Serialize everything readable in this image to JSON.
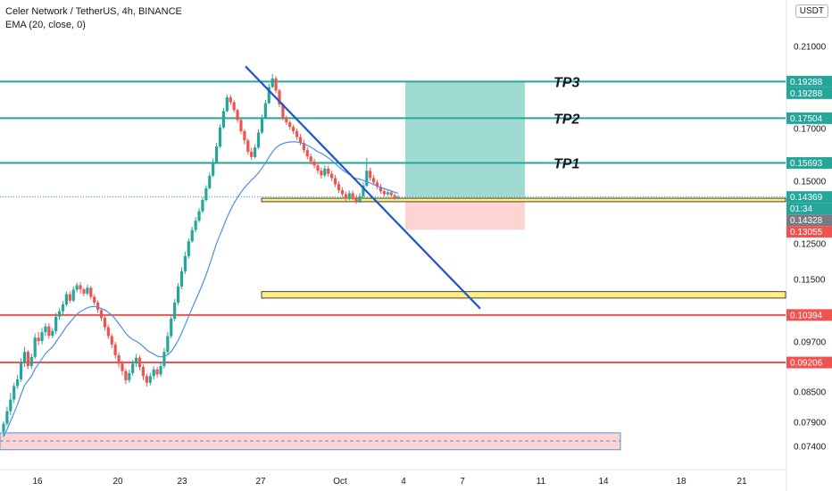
{
  "header": {
    "title": "Celer Network / TetherUS, 4h, BINANCE",
    "indicator": "EMA (20, close, 0)",
    "currency_button": "USDT"
  },
  "colors": {
    "teal": "#26a69a",
    "red": "#ef5350",
    "blue": "#1e56c9",
    "yellow": "#ffef82",
    "teal_zone": "#9fdbd1",
    "red_zone": "#fcd5d3"
  },
  "chart_data": {
    "type": "candlestick",
    "symbol": "Celer Network / TetherUS",
    "timeframe": "4h",
    "exchange": "BINANCE",
    "indicator": "EMA (20, close, 0)",
    "x_ticks": [
      "16",
      "20",
      "23",
      "27",
      "Oct",
      "4",
      "7",
      "11",
      "14",
      "18",
      "21"
    ],
    "y_ticks": [
      "0.21000",
      "0.17000",
      "0.15000",
      "0.12500",
      "0.11500",
      "0.09700",
      "0.08500",
      "0.07900",
      "0.07400"
    ],
    "horizontal_levels": [
      {
        "label": "TP3",
        "value": 0.19288,
        "color": "#26a69a"
      },
      {
        "label": "TP2",
        "value": 0.17504,
        "color": "#26a69a"
      },
      {
        "label": "TP1",
        "value": 0.15693,
        "color": "#26a69a"
      },
      {
        "label": "",
        "value": 0.10394,
        "color": "#ef5350"
      },
      {
        "label": "",
        "value": 0.09206,
        "color": "#ef5350"
      }
    ],
    "price_badges": [
      {
        "text": "0.19288",
        "value": 0.19288,
        "color": "#26a69a"
      },
      {
        "text": "0.19288",
        "value": 0.19288,
        "color": "#26a69a"
      },
      {
        "text": "0.17504",
        "value": 0.17504,
        "color": "#26a69a"
      },
      {
        "text": "0.15693",
        "value": 0.15693,
        "color": "#26a69a"
      },
      {
        "text": "0.14369",
        "value": 0.14369,
        "color": "#26a69a"
      },
      {
        "text": "01:34",
        "value": 0.1423,
        "color": "#26a69a"
      },
      {
        "text": "0.14328",
        "value": 0.14328,
        "color": "#787b86"
      },
      {
        "text": "0.13055",
        "value": 0.13055,
        "color": "#ef5350"
      },
      {
        "text": "0.10394",
        "value": 0.10394,
        "color": "#ef5350"
      },
      {
        "text": "0.09206",
        "value": 0.09206,
        "color": "#ef5350"
      }
    ],
    "last_price": 0.14369,
    "countdown": "01:34",
    "position": {
      "entry": 0.14369,
      "target": 0.19288,
      "stop": 0.13055
    },
    "support_zones": [
      {
        "low": 0.1418,
        "high": 0.1432
      },
      {
        "low": 0.1092,
        "high": 0.1112
      }
    ],
    "bottom_zone": {
      "low": 0.0733,
      "high": 0.0768,
      "mid": 0.0751
    },
    "trendline": {
      "start": 0.2003,
      "end": 0.1059
    },
    "tp_labels": [
      "TP3",
      "TP2",
      "TP1"
    ],
    "candles": [
      [
        0.077,
        0.0787,
        0.076,
        0.0792
      ],
      [
        0.0787,
        0.0812,
        0.0782,
        0.0821
      ],
      [
        0.0812,
        0.0835,
        0.0804,
        0.0848
      ],
      [
        0.0835,
        0.0864,
        0.0828,
        0.0872
      ],
      [
        0.0864,
        0.088,
        0.0857,
        0.0891
      ],
      [
        0.088,
        0.092,
        0.0874,
        0.0931
      ],
      [
        0.092,
        0.0946,
        0.091,
        0.0958
      ],
      [
        0.0946,
        0.0912,
        0.0905,
        0.095
      ],
      [
        0.0912,
        0.0934,
        0.0905,
        0.0942
      ],
      [
        0.0934,
        0.0981,
        0.0929,
        0.0992
      ],
      [
        0.0981,
        0.0972,
        0.0962,
        0.0996
      ],
      [
        0.0972,
        0.0995,
        0.0964,
        0.1006
      ],
      [
        0.0995,
        0.101,
        0.0986,
        0.1018
      ],
      [
        0.101,
        0.0986,
        0.0978,
        0.1018
      ],
      [
        0.0986,
        0.0998,
        0.098,
        0.1006
      ],
      [
        0.0998,
        0.1035,
        0.099,
        0.1046
      ],
      [
        0.1035,
        0.1051,
        0.1027,
        0.1062
      ],
      [
        0.1051,
        0.1072,
        0.104,
        0.1083
      ],
      [
        0.1072,
        0.1104,
        0.1066,
        0.1113
      ],
      [
        0.1104,
        0.1084,
        0.1076,
        0.1112
      ],
      [
        0.1084,
        0.1118,
        0.1079,
        0.1128
      ],
      [
        0.1118,
        0.1132,
        0.111,
        0.114
      ],
      [
        0.1132,
        0.1119,
        0.1106,
        0.1141
      ],
      [
        0.1119,
        0.1106,
        0.1098,
        0.1124
      ],
      [
        0.1106,
        0.1124,
        0.11,
        0.1134
      ],
      [
        0.1124,
        0.1096,
        0.1088,
        0.113
      ],
      [
        0.1096,
        0.1078,
        0.107,
        0.1104
      ],
      [
        0.1078,
        0.1055,
        0.1046,
        0.1084
      ],
      [
        0.1055,
        0.1032,
        0.1024,
        0.1061
      ],
      [
        0.1032,
        0.1008,
        0.1,
        0.104
      ],
      [
        0.1008,
        0.0985,
        0.0978,
        0.1014
      ],
      [
        0.0985,
        0.0964,
        0.0955,
        0.0991
      ],
      [
        0.0964,
        0.0938,
        0.093,
        0.097
      ],
      [
        0.0938,
        0.0918,
        0.0909,
        0.0944
      ],
      [
        0.0918,
        0.09,
        0.089,
        0.0925
      ],
      [
        0.09,
        0.0878,
        0.0868,
        0.0906
      ],
      [
        0.0878,
        0.0895,
        0.0872,
        0.0903
      ],
      [
        0.0895,
        0.0918,
        0.0889,
        0.0927
      ],
      [
        0.0918,
        0.0932,
        0.091,
        0.0941
      ],
      [
        0.0932,
        0.091,
        0.0902,
        0.0938
      ],
      [
        0.091,
        0.0888,
        0.0878,
        0.0916
      ],
      [
        0.0888,
        0.0872,
        0.0863,
        0.0894
      ],
      [
        0.0872,
        0.0888,
        0.0866,
        0.0896
      ],
      [
        0.0888,
        0.0904,
        0.088,
        0.0912
      ],
      [
        0.0904,
        0.0892,
        0.0884,
        0.091
      ],
      [
        0.0892,
        0.0912,
        0.0886,
        0.0922
      ],
      [
        0.0912,
        0.0946,
        0.0906,
        0.0955
      ],
      [
        0.0946,
        0.0985,
        0.094,
        0.0996
      ],
      [
        0.0985,
        0.103,
        0.0979,
        0.1041
      ],
      [
        0.103,
        0.1078,
        0.1024,
        0.1089
      ],
      [
        0.1078,
        0.1128,
        0.107,
        0.1139
      ],
      [
        0.1128,
        0.1173,
        0.112,
        0.1184
      ],
      [
        0.1173,
        0.1215,
        0.1165,
        0.1228
      ],
      [
        0.1215,
        0.126,
        0.1208,
        0.1271
      ],
      [
        0.126,
        0.1305,
        0.1254,
        0.1318
      ],
      [
        0.1305,
        0.1342,
        0.1296,
        0.1356
      ],
      [
        0.1342,
        0.138,
        0.1335,
        0.1393
      ],
      [
        0.138,
        0.1425,
        0.1373,
        0.1437
      ],
      [
        0.1425,
        0.1472,
        0.1418,
        0.1484
      ],
      [
        0.1472,
        0.1521,
        0.1466,
        0.1533
      ],
      [
        0.1521,
        0.1572,
        0.1515,
        0.1586
      ],
      [
        0.1572,
        0.1632,
        0.1566,
        0.1646
      ],
      [
        0.1632,
        0.1705,
        0.1626,
        0.172
      ],
      [
        0.1705,
        0.1785,
        0.1698,
        0.1801
      ],
      [
        0.1785,
        0.1852,
        0.1779,
        0.1866
      ],
      [
        0.1852,
        0.1828,
        0.1815,
        0.1866
      ],
      [
        0.1828,
        0.179,
        0.1779,
        0.1838
      ],
      [
        0.179,
        0.1742,
        0.173,
        0.1797
      ],
      [
        0.1742,
        0.169,
        0.1678,
        0.175
      ],
      [
        0.169,
        0.1655,
        0.164,
        0.1698
      ],
      [
        0.1655,
        0.1612,
        0.16,
        0.1662
      ],
      [
        0.1612,
        0.1592,
        0.158,
        0.1627
      ],
      [
        0.1592,
        0.1628,
        0.1586,
        0.164
      ],
      [
        0.1628,
        0.1685,
        0.1622,
        0.1697
      ],
      [
        0.1685,
        0.1752,
        0.168,
        0.1768
      ],
      [
        0.1752,
        0.1824,
        0.1746,
        0.184
      ],
      [
        0.1824,
        0.1902,
        0.1818,
        0.1918
      ],
      [
        0.1902,
        0.1944,
        0.1896,
        0.1966
      ],
      [
        0.1944,
        0.1885,
        0.1872,
        0.1955
      ],
      [
        0.1885,
        0.1818,
        0.1804,
        0.1893
      ],
      [
        0.1818,
        0.1752,
        0.174,
        0.1826
      ],
      [
        0.1752,
        0.173,
        0.1718,
        0.1763
      ],
      [
        0.173,
        0.1708,
        0.1696,
        0.174
      ],
      [
        0.1708,
        0.169,
        0.1679,
        0.1719
      ],
      [
        0.169,
        0.1668,
        0.1657,
        0.1701
      ],
      [
        0.1668,
        0.1646,
        0.1636,
        0.168
      ],
      [
        0.1646,
        0.1618,
        0.1607,
        0.1658
      ],
      [
        0.1618,
        0.1594,
        0.1583,
        0.1629
      ],
      [
        0.1594,
        0.1575,
        0.1563,
        0.1605
      ],
      [
        0.1575,
        0.156,
        0.1548,
        0.1586
      ],
      [
        0.156,
        0.154,
        0.1528,
        0.1571
      ],
      [
        0.154,
        0.1522,
        0.151,
        0.1552
      ],
      [
        0.1522,
        0.1548,
        0.1515,
        0.156
      ],
      [
        0.1548,
        0.1528,
        0.1516,
        0.1559
      ],
      [
        0.1528,
        0.1512,
        0.15,
        0.154
      ],
      [
        0.1512,
        0.1488,
        0.1476,
        0.1524
      ],
      [
        0.1488,
        0.1464,
        0.1452,
        0.15
      ],
      [
        0.1464,
        0.1448,
        0.1438,
        0.1476
      ],
      [
        0.1448,
        0.143,
        0.1419,
        0.1458
      ],
      [
        0.143,
        0.1452,
        0.1424,
        0.1463
      ],
      [
        0.1452,
        0.1436,
        0.1425,
        0.1463
      ],
      [
        0.1436,
        0.142,
        0.141,
        0.1446
      ],
      [
        0.142,
        0.144,
        0.1413,
        0.1452
      ],
      [
        0.144,
        0.1482,
        0.1434,
        0.1495
      ],
      [
        0.1482,
        0.154,
        0.1476,
        0.1588
      ],
      [
        0.154,
        0.1512,
        0.1502,
        0.1552
      ],
      [
        0.1512,
        0.1495,
        0.1484,
        0.1524
      ],
      [
        0.1495,
        0.1478,
        0.1468,
        0.1506
      ],
      [
        0.1478,
        0.146,
        0.145,
        0.1489
      ],
      [
        0.146,
        0.1448,
        0.1438,
        0.1472
      ],
      [
        0.1448,
        0.1456,
        0.144,
        0.1465
      ],
      [
        0.1456,
        0.1444,
        0.1436,
        0.1464
      ],
      [
        0.1444,
        0.1432,
        0.1426,
        0.1452
      ],
      [
        0.1432,
        0.1437,
        0.1428,
        0.1445
      ]
    ],
    "ema": [
      0.076,
      0.0775,
      0.0792,
      0.0808,
      0.0825,
      0.0845,
      0.0866,
      0.0877,
      0.0888,
      0.0905,
      0.0917,
      0.0929,
      0.0942,
      0.095,
      0.0958,
      0.097,
      0.0983,
      0.0996,
      0.101,
      0.102,
      0.1031,
      0.1042,
      0.105,
      0.1056,
      0.1062,
      0.1065,
      0.1066,
      0.1064,
      0.106,
      0.1055,
      0.1048,
      0.1039,
      0.1029,
      0.1017,
      0.1005,
      0.0992,
      0.0983,
      0.0976,
      0.0972,
      0.0966,
      0.0959,
      0.0951,
      0.0945,
      0.0941,
      0.0936,
      0.0934,
      0.0935,
      0.0939,
      0.0947,
      0.0959,
      0.0974,
      0.0993,
      0.1014,
      0.1036,
      0.106,
      0.1085,
      0.111,
      0.1136,
      0.1163,
      0.1191,
      0.1221,
      0.1252,
      0.1285,
      0.132,
      0.1355,
      0.1385,
      0.1413,
      0.1435,
      0.1456,
      0.1474,
      0.149,
      0.1504,
      0.1517,
      0.1532,
      0.155,
      0.157,
      0.1591,
      0.1612,
      0.1627,
      0.1637,
      0.1643,
      0.1647,
      0.1649,
      0.165,
      0.1649,
      0.1646,
      0.1642,
      0.1636,
      0.1629,
      0.1621,
      0.1612,
      0.1606,
      0.1598,
      0.1589,
      0.1578,
      0.1567,
      0.1555,
      0.1543,
      0.1535,
      0.1526,
      0.1516,
      0.151,
      0.1508,
      0.1503,
      0.1498,
      0.1493,
      0.1487,
      0.1481,
      0.1475,
      0.1471,
      0.1466,
      0.1461,
      0.1456,
      0.1452
    ]
  }
}
